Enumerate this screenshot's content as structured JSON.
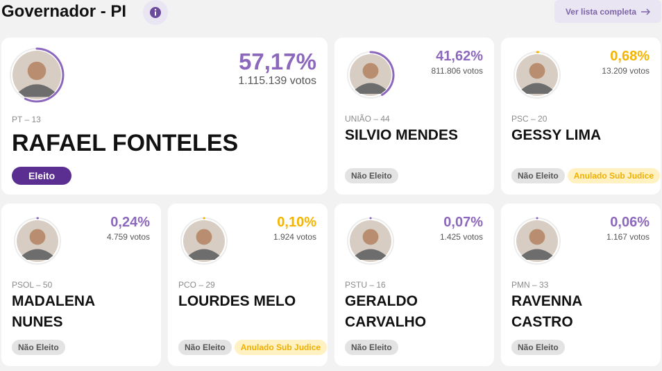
{
  "header": {
    "title": "Governador - PI",
    "link": "Ver lista completa"
  },
  "candidates": [
    {
      "party": "PT – 13",
      "name": "RAFAEL FONTELES",
      "percent": 57.17,
      "percent_label": "57,17%",
      "votes": "1.115.139 votos",
      "color": "#8c68bd",
      "badges": [
        "Eleito"
      ]
    },
    {
      "party": "UNIÃO – 44",
      "name": "SILVIO MENDES",
      "percent": 41.62,
      "percent_label": "41,62%",
      "votes": "811.806 votos",
      "color": "#8c68bd",
      "badges": [
        "Não Eleito"
      ]
    },
    {
      "party": "PSC – 20",
      "name": "GESSY LIMA",
      "percent": 0.68,
      "percent_label": "0,68%",
      "votes": "13.209 votos",
      "color": "#f5b400",
      "badges": [
        "Não Eleito",
        "Anulado Sub Judice"
      ]
    },
    {
      "party": "PSOL – 50",
      "name": "MADALENA NUNES",
      "percent": 0.24,
      "percent_label": "0,24%",
      "votes": "4.759 votos",
      "color": "#8c68bd",
      "badges": [
        "Não Eleito"
      ]
    },
    {
      "party": "PCO – 29",
      "name": "LOURDES MELO",
      "percent": 0.1,
      "percent_label": "0,10%",
      "votes": "1.924 votos",
      "color": "#f5b400",
      "badges": [
        "Não Eleito",
        "Anulado Sub Judice"
      ]
    },
    {
      "party": "PSTU – 16",
      "name": "GERALDO CARVALHO",
      "percent": 0.07,
      "percent_label": "0,07%",
      "votes": "1.425 votos",
      "color": "#8c68bd",
      "badges": [
        "Não Eleito"
      ]
    },
    {
      "party": "PMN – 33",
      "name": "RAVENNA CASTRO",
      "percent": 0.06,
      "percent_label": "0,06%",
      "votes": "1.167 votos",
      "color": "#8c68bd",
      "badges": [
        "Não Eleito"
      ]
    }
  ]
}
